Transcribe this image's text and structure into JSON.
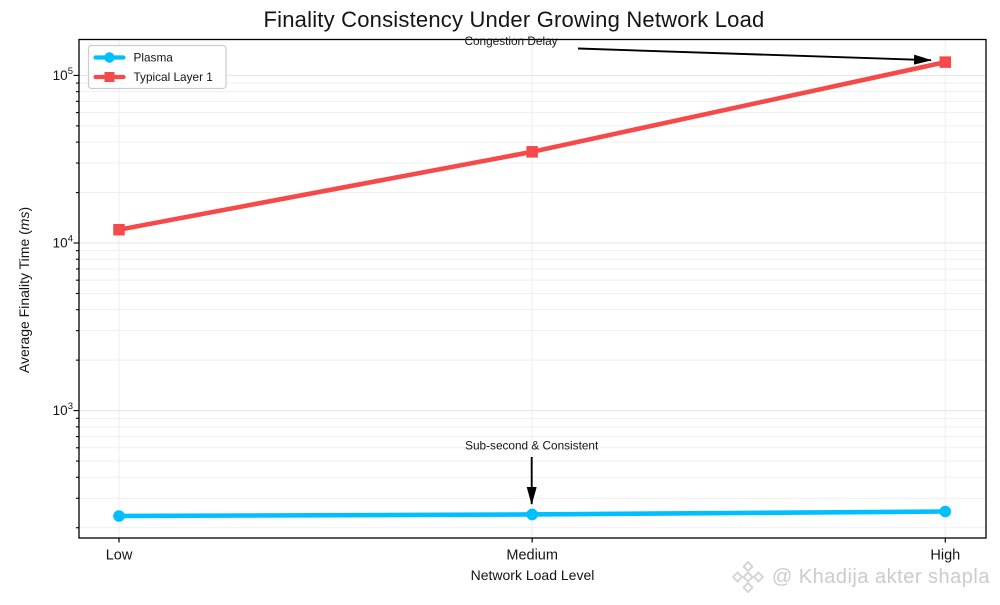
{
  "figure": {
    "watermark_handle": "@ Khadija akter shapla",
    "watermark_logo": "binance-diamond-logo"
  },
  "chart_data": {
    "type": "line",
    "title": "Finality Consistency Under Growing Network Load",
    "xlabel": "Network Load Level",
    "ylabel": "Average Finality Time (ms)",
    "ylabel_parts": {
      "prefix": "Average Finality Time (",
      "italic": "ms",
      "suffix": ")"
    },
    "yscale": "log",
    "ylim": [
      174,
      163000
    ],
    "ytick_exponents": [
      3,
      4,
      5
    ],
    "ytick_labels": [
      "10^3",
      "10^4",
      "10^5"
    ],
    "categories": [
      "Low",
      "Medium",
      "High"
    ],
    "series": [
      {
        "name": "Plasma",
        "color": "#00bfff",
        "marker": "circle",
        "values": [
          235,
          240,
          250
        ]
      },
      {
        "name": "Typical Layer 1",
        "color": "#f64a4a",
        "marker": "square",
        "values": [
          12000,
          35000,
          120000
        ]
      }
    ],
    "annotations": [
      {
        "text": "Congestion Delay",
        "series": "Typical Layer 1",
        "category": "High"
      },
      {
        "text": "Sub-second & Consistent",
        "series": "Plasma",
        "category": "Medium"
      }
    ],
    "legend_position": "upper left",
    "grid": true,
    "colors": {
      "grid_major": "#e4e4e4",
      "grid_minor": "#efefef",
      "spine": "#000000",
      "text": "#141414",
      "annotation_arrow": "#000000",
      "legend_border": "#cccccc",
      "watermark": "#cbcbcb"
    }
  }
}
